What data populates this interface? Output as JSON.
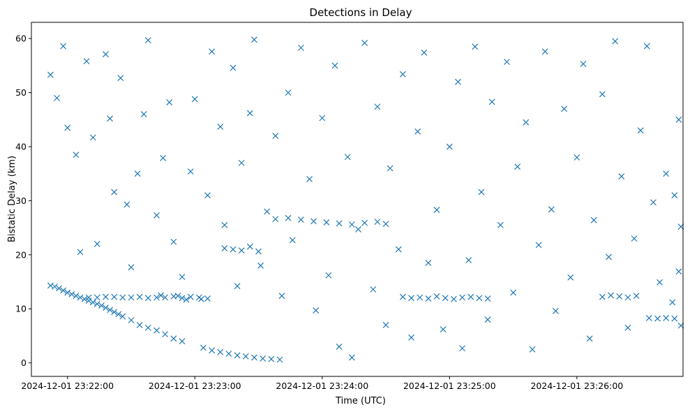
{
  "chart_data": {
    "type": "scatter",
    "title": "Detections in Delay",
    "xlabel": "Time (UTC)",
    "ylabel": "Bistatic Delay (km)",
    "marker": "x",
    "color": "#1f77b4",
    "grid": false,
    "legend": "none",
    "xlim": [
      "2024-12-01 23:21:43",
      "2024-12-01 23:26:50"
    ],
    "ylim": [
      -2.5,
      63
    ],
    "xticks": [
      "2024-12-01 23:22:00",
      "2024-12-01 23:23:00",
      "2024-12-01 23:24:00",
      "2024-12-01 23:25:00",
      "2024-12-01 23:26:00"
    ],
    "yticks": [
      0,
      10,
      20,
      30,
      40,
      50,
      60
    ],
    "series": [
      {
        "points": [
          [
            "2024-12-01 23:21:52",
            14.3
          ],
          [
            "2024-12-01 23:21:54",
            14.1
          ],
          [
            "2024-12-01 23:21:56",
            13.8
          ],
          [
            "2024-12-01 23:21:58",
            13.4
          ],
          [
            "2024-12-01 23:22:00",
            13.0
          ],
          [
            "2024-12-01 23:22:02",
            12.7
          ],
          [
            "2024-12-01 23:22:04",
            12.4
          ],
          [
            "2024-12-01 23:22:06",
            12.1
          ],
          [
            "2024-12-01 23:22:08",
            11.8
          ],
          [
            "2024-12-01 23:22:10",
            11.5
          ],
          [
            "2024-12-01 23:22:12",
            11.2
          ],
          [
            "2024-12-01 23:22:14",
            10.9
          ],
          [
            "2024-12-01 23:22:16",
            10.6
          ],
          [
            "2024-12-01 23:22:18",
            10.2
          ],
          [
            "2024-12-01 23:22:20",
            9.8
          ],
          [
            "2024-12-01 23:22:22",
            9.4
          ],
          [
            "2024-12-01 23:22:24",
            9.0
          ],
          [
            "2024-12-01 23:22:26",
            8.6
          ],
          [
            "2024-12-01 23:22:30",
            7.9
          ],
          [
            "2024-12-01 23:22:34",
            7.0
          ],
          [
            "2024-12-01 23:22:38",
            6.5
          ],
          [
            "2024-12-01 23:22:42",
            6.0
          ],
          [
            "2024-12-01 23:22:46",
            5.3
          ],
          [
            "2024-12-01 23:22:50",
            4.5
          ],
          [
            "2024-12-01 23:22:54",
            4.0
          ],
          [
            "2024-12-01 23:23:04",
            2.8
          ],
          [
            "2024-12-01 23:23:08",
            2.3
          ],
          [
            "2024-12-01 23:23:12",
            2.0
          ],
          [
            "2024-12-01 23:23:16",
            1.7
          ],
          [
            "2024-12-01 23:23:20",
            1.4
          ],
          [
            "2024-12-01 23:23:24",
            1.2
          ],
          [
            "2024-12-01 23:23:28",
            1.0
          ],
          [
            "2024-12-01 23:23:32",
            0.8
          ],
          [
            "2024-12-01 23:23:36",
            0.7
          ],
          [
            "2024-12-01 23:23:40",
            0.6
          ],
          [
            "2024-12-01 23:22:10",
            12.1
          ],
          [
            "2024-12-01 23:22:14",
            12.1
          ],
          [
            "2024-12-01 23:22:18",
            12.2
          ],
          [
            "2024-12-01 23:22:22",
            12.2
          ],
          [
            "2024-12-01 23:22:26",
            12.1
          ],
          [
            "2024-12-01 23:22:30",
            12.1
          ],
          [
            "2024-12-01 23:22:34",
            12.2
          ],
          [
            "2024-12-01 23:22:38",
            12.0
          ],
          [
            "2024-12-01 23:22:42",
            12.1
          ],
          [
            "2024-12-01 23:22:46",
            12.1
          ],
          [
            "2024-12-01 23:22:50",
            12.3
          ],
          [
            "2024-12-01 23:22:54",
            12.0
          ],
          [
            "2024-12-01 23:22:58",
            12.2
          ],
          [
            "2024-12-01 23:23:02",
            12.1
          ],
          [
            "2024-12-01 23:23:06",
            11.9
          ],
          [
            "2024-12-01 23:22:52",
            12.4
          ],
          [
            "2024-12-01 23:22:56",
            11.7
          ],
          [
            "2024-12-01 23:22:44",
            12.5
          ],
          [
            "2024-12-01 23:23:14",
            21.2
          ],
          [
            "2024-12-01 23:23:18",
            21.0
          ],
          [
            "2024-12-01 23:23:22",
            20.8
          ],
          [
            "2024-12-01 23:23:26",
            21.5
          ],
          [
            "2024-12-01 23:23:30",
            20.6
          ],
          [
            "2024-12-01 23:23:38",
            26.6
          ],
          [
            "2024-12-01 23:23:44",
            26.8
          ],
          [
            "2024-12-01 23:23:50",
            26.5
          ],
          [
            "2024-12-01 23:23:56",
            26.2
          ],
          [
            "2024-12-01 23:24:02",
            26.0
          ],
          [
            "2024-12-01 23:24:08",
            25.8
          ],
          [
            "2024-12-01 23:24:14",
            25.6
          ],
          [
            "2024-12-01 23:24:20",
            25.9
          ],
          [
            "2024-12-01 23:24:26",
            26.1
          ],
          [
            "2024-12-01 23:24:30",
            25.7
          ],
          [
            "2024-12-01 23:24:38",
            12.2
          ],
          [
            "2024-12-01 23:24:42",
            12.0
          ],
          [
            "2024-12-01 23:24:46",
            12.1
          ],
          [
            "2024-12-01 23:24:50",
            11.9
          ],
          [
            "2024-12-01 23:24:54",
            12.3
          ],
          [
            "2024-12-01 23:24:58",
            12.0
          ],
          [
            "2024-12-01 23:25:02",
            11.8
          ],
          [
            "2024-12-01 23:25:06",
            12.1
          ],
          [
            "2024-12-01 23:25:10",
            12.2
          ],
          [
            "2024-12-01 23:25:14",
            12.0
          ],
          [
            "2024-12-01 23:25:18",
            11.9
          ],
          [
            "2024-12-01 23:26:12",
            12.2
          ],
          [
            "2024-12-01 23:26:16",
            12.5
          ],
          [
            "2024-12-01 23:26:20",
            12.3
          ],
          [
            "2024-12-01 23:26:24",
            12.1
          ],
          [
            "2024-12-01 23:26:28",
            12.4
          ],
          [
            "2024-12-01 23:26:34",
            8.3
          ],
          [
            "2024-12-01 23:26:38",
            8.2
          ],
          [
            "2024-12-01 23:26:42",
            8.3
          ],
          [
            "2024-12-01 23:26:46",
            8.2
          ],
          [
            "2024-12-01 23:21:52",
            53.3
          ],
          [
            "2024-12-01 23:21:55",
            49.0
          ],
          [
            "2024-12-01 23:21:58",
            58.6
          ],
          [
            "2024-12-01 23:22:00",
            43.5
          ],
          [
            "2024-12-01 23:22:04",
            38.5
          ],
          [
            "2024-12-01 23:22:06",
            20.5
          ],
          [
            "2024-12-01 23:22:09",
            55.8
          ],
          [
            "2024-12-01 23:22:12",
            41.7
          ],
          [
            "2024-12-01 23:22:14",
            22.0
          ],
          [
            "2024-12-01 23:22:18",
            57.1
          ],
          [
            "2024-12-01 23:22:20",
            45.2
          ],
          [
            "2024-12-01 23:22:22",
            31.6
          ],
          [
            "2024-12-01 23:22:25",
            52.7
          ],
          [
            "2024-12-01 23:22:28",
            29.3
          ],
          [
            "2024-12-01 23:22:30",
            17.7
          ],
          [
            "2024-12-01 23:22:33",
            35.0
          ],
          [
            "2024-12-01 23:22:36",
            46.0
          ],
          [
            "2024-12-01 23:22:38",
            59.7
          ],
          [
            "2024-12-01 23:22:42",
            27.3
          ],
          [
            "2024-12-01 23:22:45",
            37.9
          ],
          [
            "2024-12-01 23:22:48",
            48.2
          ],
          [
            "2024-12-01 23:22:50",
            22.4
          ],
          [
            "2024-12-01 23:22:54",
            15.9
          ],
          [
            "2024-12-01 23:22:58",
            35.4
          ],
          [
            "2024-12-01 23:23:00",
            48.8
          ],
          [
            "2024-12-01 23:23:03",
            11.8
          ],
          [
            "2024-12-01 23:23:06",
            31.0
          ],
          [
            "2024-12-01 23:23:08",
            57.6
          ],
          [
            "2024-12-01 23:23:12",
            43.7
          ],
          [
            "2024-12-01 23:23:14",
            25.5
          ],
          [
            "2024-12-01 23:23:18",
            54.6
          ],
          [
            "2024-12-01 23:23:20",
            14.2
          ],
          [
            "2024-12-01 23:23:22",
            37.0
          ],
          [
            "2024-12-01 23:23:26",
            46.2
          ],
          [
            "2024-12-01 23:23:28",
            59.8
          ],
          [
            "2024-12-01 23:23:31",
            18.0
          ],
          [
            "2024-12-01 23:23:34",
            28.0
          ],
          [
            "2024-12-01 23:23:38",
            42.0
          ],
          [
            "2024-12-01 23:23:41",
            12.4
          ],
          [
            "2024-12-01 23:23:44",
            50.0
          ],
          [
            "2024-12-01 23:23:46",
            22.7
          ],
          [
            "2024-12-01 23:23:50",
            58.3
          ],
          [
            "2024-12-01 23:23:54",
            34.0
          ],
          [
            "2024-12-01 23:23:57",
            9.7
          ],
          [
            "2024-12-01 23:24:00",
            45.3
          ],
          [
            "2024-12-01 23:24:03",
            16.2
          ],
          [
            "2024-12-01 23:24:06",
            55.0
          ],
          [
            "2024-12-01 23:24:08",
            3.0
          ],
          [
            "2024-12-01 23:24:12",
            38.1
          ],
          [
            "2024-12-01 23:24:14",
            1.0
          ],
          [
            "2024-12-01 23:24:17",
            24.7
          ],
          [
            "2024-12-01 23:24:20",
            59.2
          ],
          [
            "2024-12-01 23:24:24",
            13.6
          ],
          [
            "2024-12-01 23:24:26",
            47.4
          ],
          [
            "2024-12-01 23:24:30",
            7.0
          ],
          [
            "2024-12-01 23:24:32",
            36.0
          ],
          [
            "2024-12-01 23:24:36",
            21.0
          ],
          [
            "2024-12-01 23:24:38",
            53.4
          ],
          [
            "2024-12-01 23:24:42",
            4.7
          ],
          [
            "2024-12-01 23:24:45",
            42.8
          ],
          [
            "2024-12-01 23:24:48",
            57.4
          ],
          [
            "2024-12-01 23:24:50",
            18.5
          ],
          [
            "2024-12-01 23:24:54",
            28.3
          ],
          [
            "2024-12-01 23:24:57",
            6.2
          ],
          [
            "2024-12-01 23:25:00",
            40.0
          ],
          [
            "2024-12-01 23:25:04",
            52.0
          ],
          [
            "2024-12-01 23:25:06",
            2.7
          ],
          [
            "2024-12-01 23:25:09",
            19.0
          ],
          [
            "2024-12-01 23:25:12",
            58.5
          ],
          [
            "2024-12-01 23:25:15",
            31.6
          ],
          [
            "2024-12-01 23:25:18",
            8.0
          ],
          [
            "2024-12-01 23:25:20",
            48.3
          ],
          [
            "2024-12-01 23:25:24",
            25.5
          ],
          [
            "2024-12-01 23:25:27",
            55.7
          ],
          [
            "2024-12-01 23:25:30",
            13.0
          ],
          [
            "2024-12-01 23:25:32",
            36.3
          ],
          [
            "2024-12-01 23:25:36",
            44.5
          ],
          [
            "2024-12-01 23:25:39",
            2.5
          ],
          [
            "2024-12-01 23:25:42",
            21.8
          ],
          [
            "2024-12-01 23:25:45",
            57.6
          ],
          [
            "2024-12-01 23:25:48",
            28.4
          ],
          [
            "2024-12-01 23:25:50",
            9.6
          ],
          [
            "2024-12-01 23:25:54",
            47.0
          ],
          [
            "2024-12-01 23:25:57",
            15.8
          ],
          [
            "2024-12-01 23:26:00",
            38.0
          ],
          [
            "2024-12-01 23:26:03",
            55.3
          ],
          [
            "2024-12-01 23:26:06",
            4.5
          ],
          [
            "2024-12-01 23:26:08",
            26.4
          ],
          [
            "2024-12-01 23:26:12",
            49.7
          ],
          [
            "2024-12-01 23:26:15",
            19.6
          ],
          [
            "2024-12-01 23:26:18",
            59.5
          ],
          [
            "2024-12-01 23:26:21",
            34.5
          ],
          [
            "2024-12-01 23:26:24",
            6.5
          ],
          [
            "2024-12-01 23:26:27",
            23.0
          ],
          [
            "2024-12-01 23:26:30",
            43.0
          ],
          [
            "2024-12-01 23:26:33",
            58.6
          ],
          [
            "2024-12-01 23:26:36",
            29.7
          ],
          [
            "2024-12-01 23:26:39",
            14.9
          ],
          [
            "2024-12-01 23:26:42",
            35.0
          ],
          [
            "2024-12-01 23:26:45",
            11.2
          ],
          [
            "2024-12-01 23:26:48",
            45.0
          ],
          [
            "2024-12-01 23:26:49",
            25.2
          ],
          [
            "2024-12-01 23:26:49",
            6.9
          ],
          [
            "2024-12-01 23:26:48",
            16.9
          ],
          [
            "2024-12-01 23:26:46",
            31.0
          ]
        ]
      }
    ]
  }
}
